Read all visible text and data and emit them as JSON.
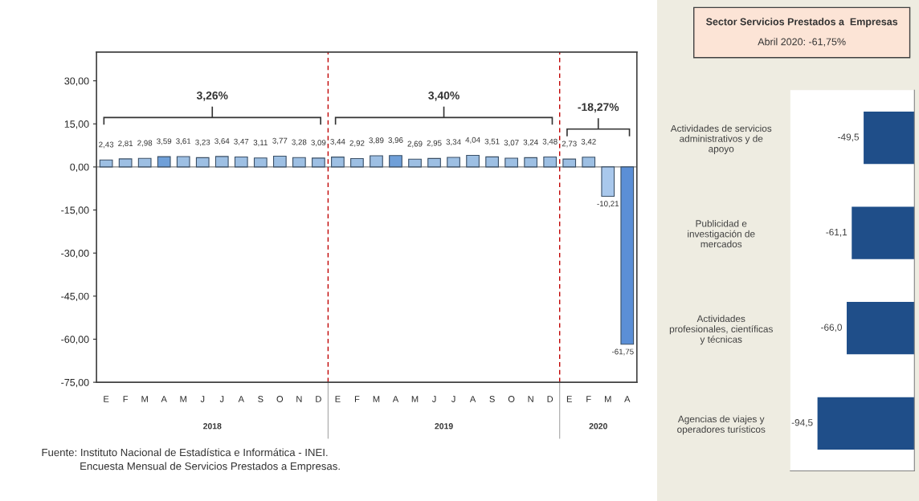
{
  "chart_data": [
    {
      "type": "bar",
      "categories": [
        "E",
        "F",
        "M",
        "A",
        "M",
        "J",
        "J",
        "A",
        "S",
        "O",
        "N",
        "D",
        "E",
        "F",
        "M",
        "A",
        "M",
        "J",
        "J",
        "A",
        "S",
        "O",
        "N",
        "D",
        "E",
        "F",
        "M",
        "A"
      ],
      "values": [
        2.43,
        2.81,
        2.98,
        3.59,
        3.61,
        3.23,
        3.64,
        3.47,
        3.11,
        3.77,
        3.28,
        3.09,
        3.44,
        2.92,
        3.89,
        3.96,
        2.69,
        2.95,
        3.34,
        4.04,
        3.51,
        3.07,
        3.24,
        3.48,
        2.73,
        3.42,
        -10.21,
        -61.75
      ],
      "value_labels": [
        "2,43",
        "2,81",
        "2,98",
        "3,59",
        "3,61",
        "3,23",
        "3,64",
        "3,47",
        "3,11",
        "3,77",
        "3,28",
        "3,09",
        "3,44",
        "2,92",
        "3,89",
        "3,96",
        "2,69",
        "2,95",
        "3,34",
        "4,04",
        "3,51",
        "3,07",
        "3,24",
        "3,48",
        "2,73",
        "3,42",
        "-10,21",
        "-61,75"
      ],
      "colors": [
        "#9dbfe3",
        "#9dbfe3",
        "#9dbfe3",
        "#6f9fd8",
        "#9dbfe3",
        "#9dbfe3",
        "#9dbfe3",
        "#9dbfe3",
        "#9dbfe3",
        "#9dbfe3",
        "#9dbfe3",
        "#9dbfe3",
        "#9dbfe3",
        "#9dbfe3",
        "#9dbfe3",
        "#6f9fd8",
        "#9dbfe3",
        "#9dbfe3",
        "#9dbfe3",
        "#9dbfe3",
        "#9dbfe3",
        "#9dbfe3",
        "#9dbfe3",
        "#9dbfe3",
        "#9dbfe3",
        "#9dbfe3",
        "#a9c8ec",
        "#5b8fd6"
      ],
      "ylim": [
        -75,
        40
      ],
      "yticks": [
        {
          "value": -75,
          "label": "-75,00"
        },
        {
          "value": -60,
          "label": "-60,00"
        },
        {
          "value": -45,
          "label": "-45,00"
        },
        {
          "value": -30,
          "label": "-30,00"
        },
        {
          "value": -15,
          "label": "-15,00"
        },
        {
          "value": 0,
          "label": "0,00"
        },
        {
          "value": 15,
          "label": "15,00"
        },
        {
          "value": 30,
          "label": "30,00"
        }
      ],
      "annotations": [
        "3,26%",
        "3,40%",
        "-18,27%",
        "2018",
        "2019",
        "2020",
        "Fuente: Instituto Nacional de Estadística e Informática - INEI.\n             Encuesta Mensual de Servicios Prestados a Empresas."
      ],
      "grid": false
    },
    {
      "type": "bar",
      "orientation": "horizontal",
      "title": "Sector Servicios Prestados a  Empresas",
      "subtitle": "Abril 2020: -61,75%",
      "categories": [
        "Actividades de servicios\nadministrativos y de\napoyo",
        "Publicidad e\ninvestigación de\nmercados",
        "Actividades\nprofesionales, científicas\ny técnicas",
        "Agencias de viajes y\noperadores turísticos"
      ],
      "values": [
        -49.5,
        -61.1,
        -66.0,
        -94.5
      ],
      "value_labels": [
        "-49,5",
        "-61,1",
        "-66,0",
        "-94,5"
      ],
      "color": "#1f4e89",
      "tick_labels": "y",
      "grid": false
    }
  ]
}
